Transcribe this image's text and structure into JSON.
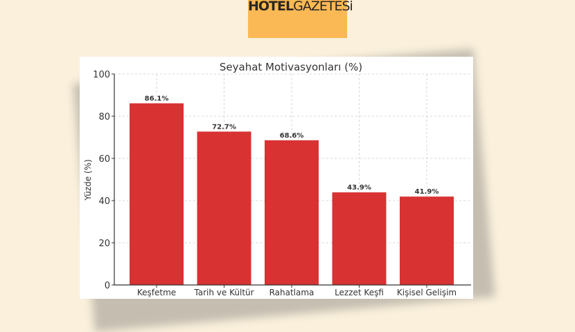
{
  "logo": {
    "text": "HOTELGAZETESi"
  },
  "chart_data": {
    "type": "bar",
    "title": "Seyahat Motivasyonları (%)",
    "xlabel": "",
    "ylabel": "Yüzde (%)",
    "ylim": [
      0,
      100
    ],
    "yticks": [
      0,
      20,
      40,
      60,
      80,
      100
    ],
    "categories": [
      "Keşfetme",
      "Tarih ve Kültür",
      "Rahatlama",
      "Lezzet Keşfi",
      "Kişisel Gelişim"
    ],
    "values": [
      86.1,
      72.7,
      68.6,
      43.9,
      41.9
    ],
    "data_labels": [
      "86.1%",
      "72.7%",
      "68.6%",
      "43.9%",
      "41.9%"
    ],
    "grid": true,
    "bar_color": "#d62728"
  }
}
